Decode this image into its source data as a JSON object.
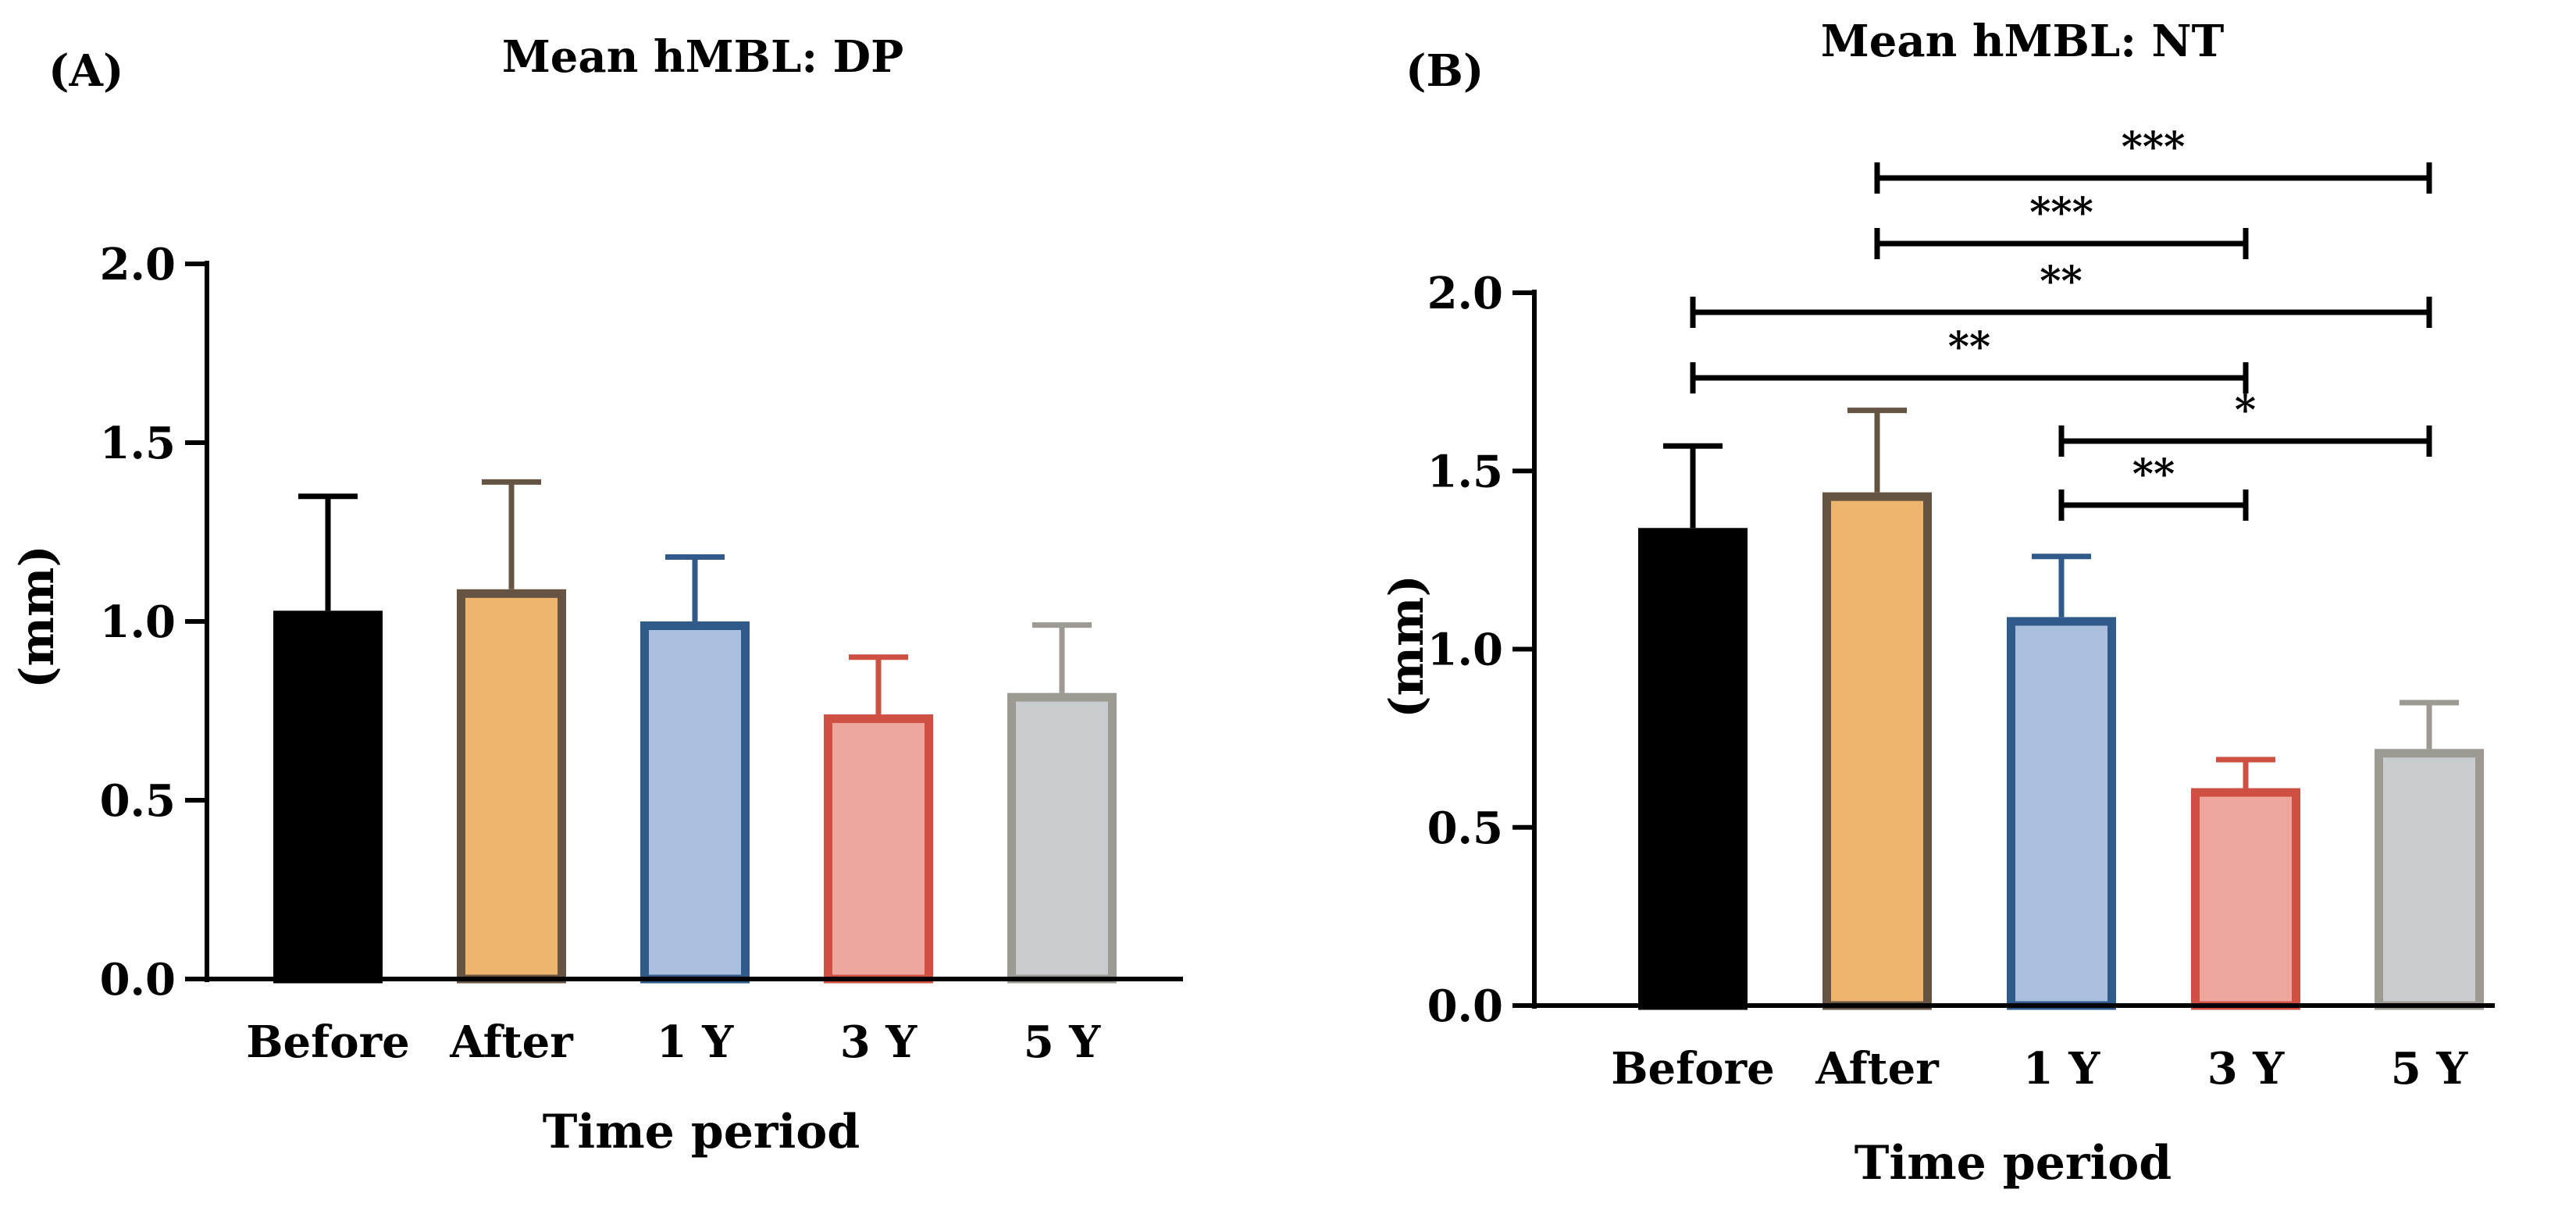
{
  "chart_data": [
    {
      "type": "bar",
      "panel": "(A)",
      "title": "Mean hMBL: DP",
      "xlabel": "Time period",
      "ylabel": "(mm)",
      "ylim": [
        0,
        2.0
      ],
      "yticks": [
        "0.0",
        "0.5",
        "1.0",
        "1.5",
        "2.0"
      ],
      "categories": [
        "Before",
        "After",
        "1 Y",
        "3 Y",
        "5 Y"
      ],
      "values": [
        1.03,
        1.09,
        1.0,
        0.74,
        0.8
      ],
      "errors": [
        0.32,
        0.3,
        0.18,
        0.16,
        0.19
      ],
      "fills": [
        "#000000",
        "#eeb56f",
        "#a9bfdd",
        "#eda79e",
        "#c8cccf"
      ],
      "strokes": [
        "#000000",
        "#665442",
        "#2f5a8a",
        "#cf4f43",
        "#9c9a93"
      ],
      "significance": []
    },
    {
      "type": "bar",
      "panel": "(B)",
      "title": "Mean hMBL: NT",
      "xlabel": "Time period",
      "ylabel": "(mm)",
      "ylim": [
        0,
        2.0
      ],
      "yticks": [
        "0.0",
        "0.5",
        "1.0",
        "1.5",
        "2.0"
      ],
      "categories": [
        "Before",
        "After",
        "1 Y",
        "3 Y",
        "5 Y"
      ],
      "values": [
        1.34,
        1.44,
        1.09,
        0.61,
        0.72
      ],
      "errors": [
        0.23,
        0.23,
        0.17,
        0.08,
        0.13
      ],
      "fills": [
        "#000000",
        "#eeb56f",
        "#a9bfdd",
        "#eda79e",
        "#c8cccf"
      ],
      "strokes": [
        "#000000",
        "#665442",
        "#2f5a8a",
        "#cf4f43",
        "#9c9a93"
      ],
      "significance": [
        {
          "from": "After",
          "to": "5 Y",
          "label": "***"
        },
        {
          "from": "After",
          "to": "3 Y",
          "label": "***"
        },
        {
          "from": "Before",
          "to": "5 Y",
          "label": "**"
        },
        {
          "from": "Before",
          "to": "3 Y",
          "label": "**"
        },
        {
          "from": "1 Y",
          "to": "5 Y",
          "label": "*"
        },
        {
          "from": "1 Y",
          "to": "3 Y",
          "label": "**"
        }
      ]
    }
  ]
}
